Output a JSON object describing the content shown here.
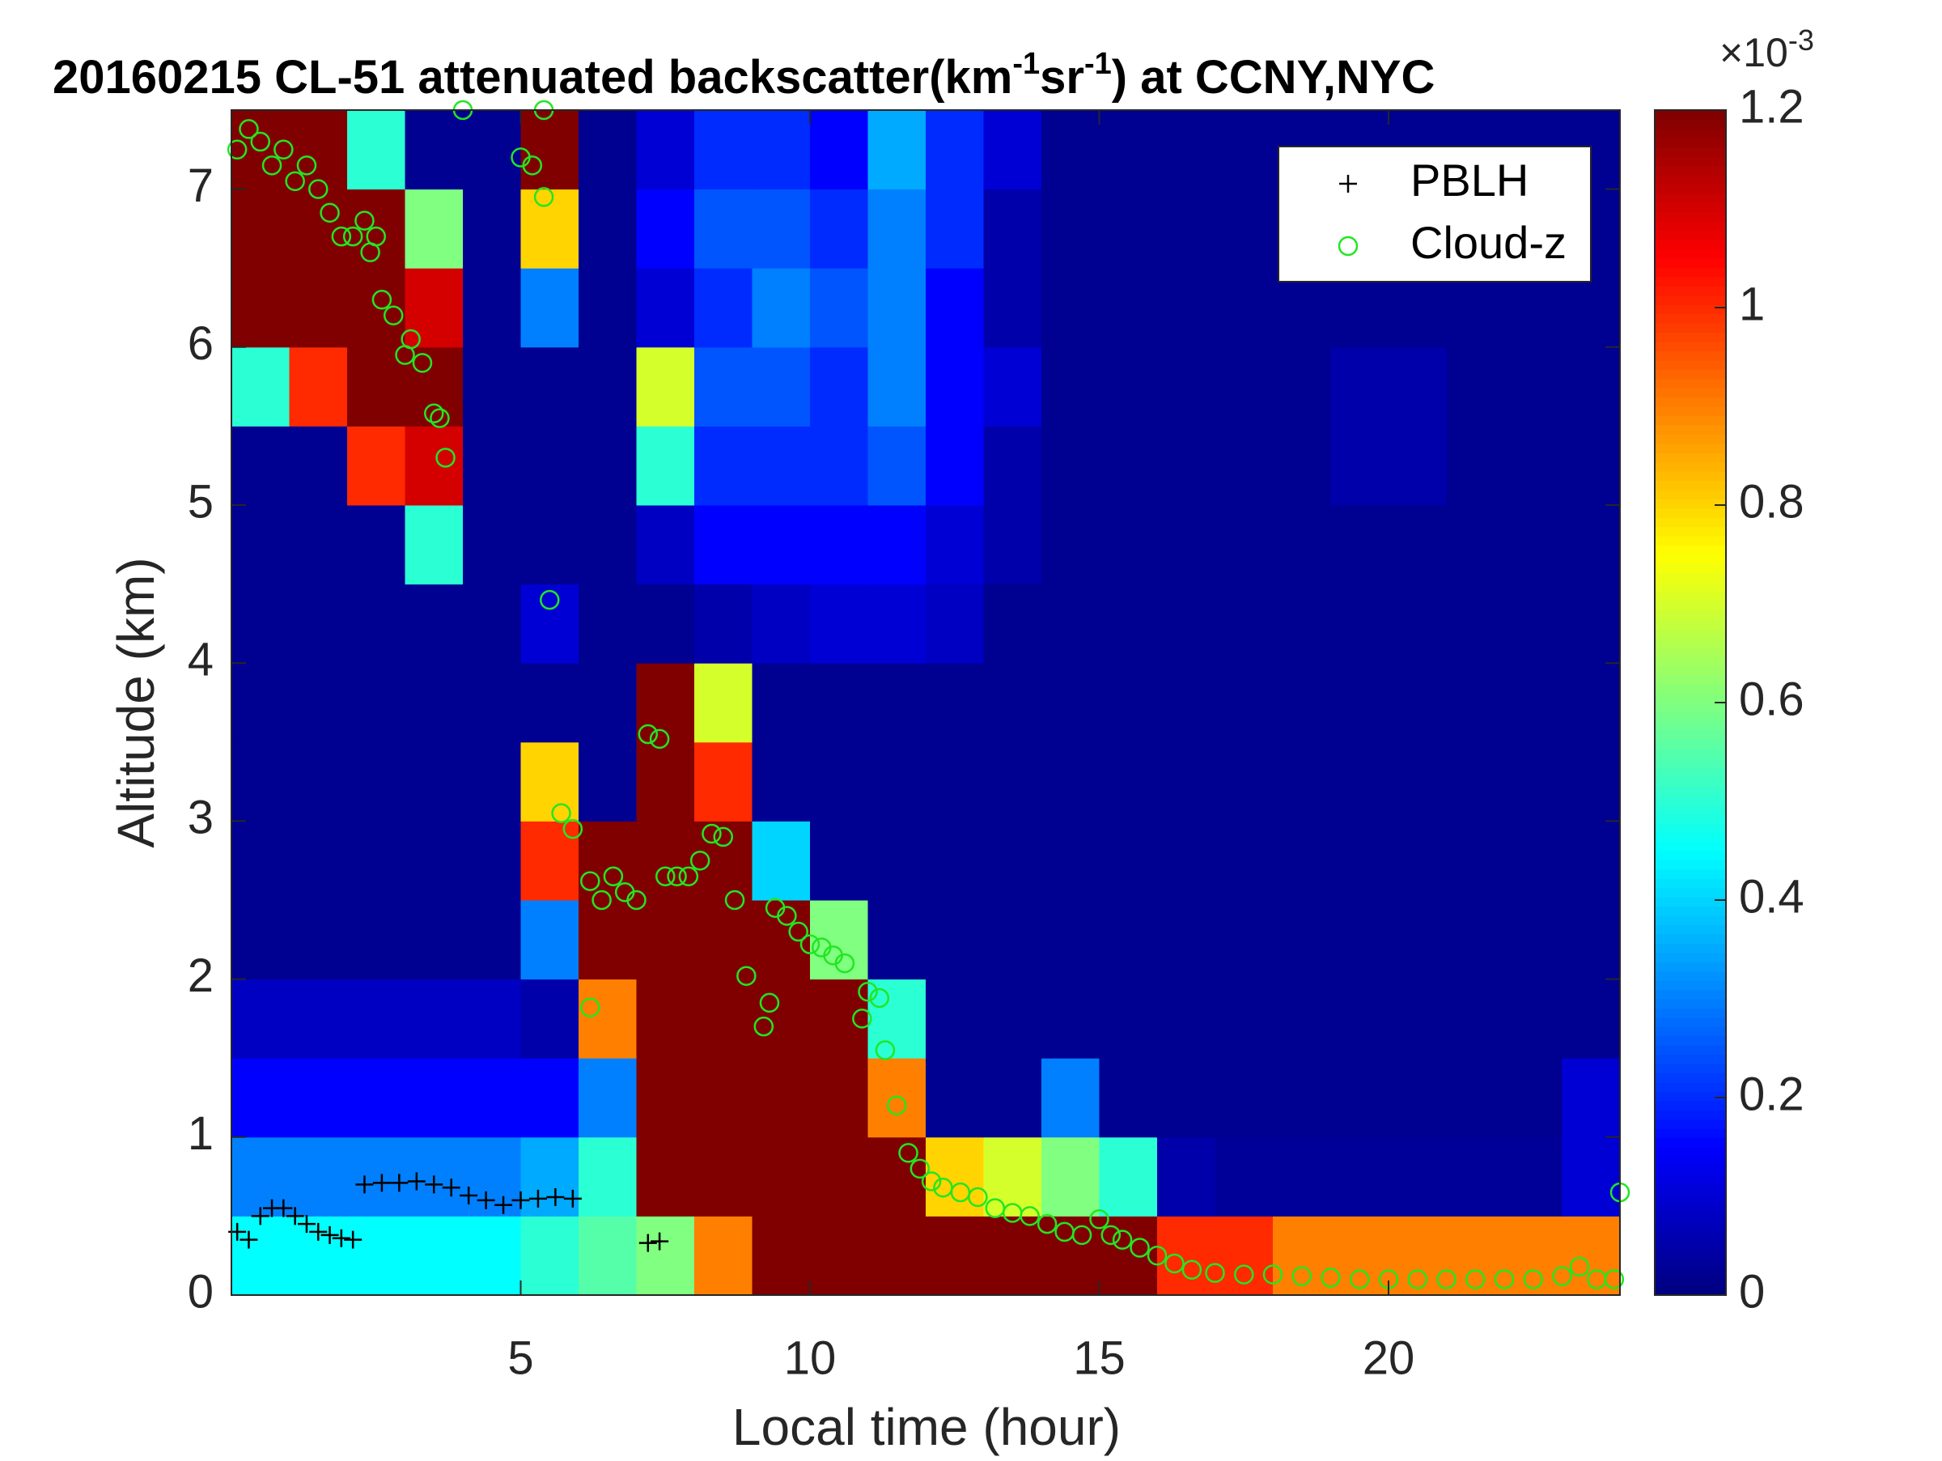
{
  "chart_data": {
    "type": "heatmap",
    "title": [
      "20160215  CL-51 attenuated backscatter(km",
      "-1",
      "sr",
      "-1",
      ") at CCNY,NYC"
    ],
    "x_label": "Local time (hour)",
    "y_label": "Altitude (km)",
    "xlim": [
      0,
      24
    ],
    "ylim": [
      0,
      7.5
    ],
    "xticks": [
      5,
      10,
      15,
      20
    ],
    "yticks": [
      0,
      1,
      2,
      3,
      4,
      5,
      6,
      7
    ],
    "colormap": "jet",
    "clim": [
      0,
      1.2
    ],
    "cticks": [
      0,
      0.2,
      0.4,
      0.6,
      0.8,
      1,
      1.2
    ],
    "colorbar_exponent": [
      "×10",
      "-3"
    ],
    "legend": "upper right",
    "xbins": [
      0,
      1,
      2,
      3,
      4,
      5,
      6,
      7,
      8,
      9,
      10,
      11,
      12,
      13,
      14,
      15,
      16,
      17,
      18,
      19,
      20,
      21,
      22,
      23,
      24
    ],
    "ybins": [
      0,
      0.5,
      1,
      1.5,
      2,
      2.5,
      3,
      3.5,
      4,
      4.5,
      5,
      5.5,
      6,
      6.5,
      7,
      7.5
    ],
    "z": [
      [
        0.45,
        0.45,
        0.45,
        0.45,
        0.45,
        0.5,
        0.55,
        0.6,
        0.9,
        1.2,
        1.2,
        1.2,
        1.2,
        1.2,
        1.2,
        1.2,
        1.0,
        1.0,
        0.9,
        0.9,
        0.9,
        0.9,
        0.9,
        0.9
      ],
      [
        0.3,
        0.3,
        0.3,
        0.3,
        0.3,
        0.35,
        0.5,
        1.2,
        1.2,
        1.2,
        1.2,
        1.2,
        0.8,
        0.7,
        0.6,
        0.5,
        0.05,
        0.03,
        0.03,
        0.03,
        0.03,
        0.03,
        0.03,
        0.1
      ],
      [
        0.15,
        0.15,
        0.15,
        0.15,
        0.15,
        0.15,
        0.3,
        1.2,
        1.2,
        1.2,
        1.2,
        0.9,
        0.02,
        0.02,
        0.3,
        0.02,
        0.02,
        0.02,
        0.02,
        0.02,
        0.02,
        0.02,
        0.02,
        0.1
      ],
      [
        0.08,
        0.08,
        0.08,
        0.08,
        0.08,
        0.05,
        0.9,
        1.2,
        1.2,
        1.2,
        1.2,
        0.5,
        0.02,
        0.02,
        0.02,
        0.02,
        0.02,
        0.02,
        0.02,
        0.02,
        0.02,
        0.02,
        0.02,
        0.02
      ],
      [
        0.02,
        0.02,
        0.02,
        0.02,
        0.02,
        0.3,
        1.2,
        1.2,
        1.2,
        1.2,
        0.6,
        0.02,
        0.02,
        0.02,
        0.02,
        0.02,
        0.02,
        0.02,
        0.02,
        0.02,
        0.02,
        0.02,
        0.02,
        0.02
      ],
      [
        0.02,
        0.02,
        0.02,
        0.02,
        0.02,
        1.0,
        1.2,
        1.2,
        1.2,
        0.4,
        0.02,
        0.02,
        0.02,
        0.02,
        0.02,
        0.02,
        0.02,
        0.02,
        0.02,
        0.02,
        0.02,
        0.02,
        0.02,
        0.02
      ],
      [
        0.02,
        0.02,
        0.02,
        0.02,
        0.02,
        0.8,
        0.02,
        1.2,
        1.0,
        0.02,
        0.02,
        0.02,
        0.02,
        0.02,
        0.02,
        0.02,
        0.02,
        0.02,
        0.02,
        0.02,
        0.02,
        0.02,
        0.02,
        0.02
      ],
      [
        0.02,
        0.02,
        0.02,
        0.02,
        0.02,
        0.02,
        0.02,
        1.2,
        0.7,
        0.02,
        0.02,
        0.02,
        0.02,
        0.02,
        0.02,
        0.02,
        0.02,
        0.02,
        0.02,
        0.02,
        0.02,
        0.02,
        0.02,
        0.02
      ],
      [
        0.02,
        0.02,
        0.02,
        0.02,
        0.02,
        0.1,
        0.02,
        0.02,
        0.05,
        0.08,
        0.1,
        0.1,
        0.08,
        0.02,
        0.02,
        0.02,
        0.02,
        0.02,
        0.02,
        0.02,
        0.02,
        0.02,
        0.02,
        0.02
      ],
      [
        0.02,
        0.02,
        0.02,
        0.5,
        0.02,
        0.02,
        0.02,
        0.08,
        0.15,
        0.15,
        0.15,
        0.15,
        0.1,
        0.05,
        0.02,
        0.02,
        0.02,
        0.02,
        0.02,
        0.02,
        0.02,
        0.02,
        0.02,
        0.02
      ],
      [
        0.02,
        0.02,
        1.0,
        1.1,
        0.02,
        0.02,
        0.02,
        0.5,
        0.2,
        0.2,
        0.2,
        0.25,
        0.15,
        0.05,
        0.02,
        0.02,
        0.02,
        0.02,
        0.02,
        0.05,
        0.05,
        0.02,
        0.02,
        0.02
      ],
      [
        0.5,
        1.0,
        1.2,
        1.2,
        0.02,
        0.02,
        0.02,
        0.7,
        0.25,
        0.25,
        0.2,
        0.3,
        0.15,
        0.1,
        0.02,
        0.02,
        0.02,
        0.02,
        0.02,
        0.05,
        0.05,
        0.02,
        0.02,
        0.02
      ],
      [
        1.2,
        1.2,
        1.2,
        1.1,
        0.02,
        0.3,
        0.02,
        0.1,
        0.2,
        0.3,
        0.25,
        0.3,
        0.15,
        0.05,
        0.02,
        0.02,
        0.02,
        0.02,
        0.02,
        0.02,
        0.02,
        0.02,
        0.02,
        0.02
      ],
      [
        1.2,
        1.2,
        1.2,
        0.6,
        0.02,
        0.8,
        0.02,
        0.15,
        0.25,
        0.25,
        0.2,
        0.3,
        0.2,
        0.05,
        0.02,
        0.02,
        0.02,
        0.02,
        0.02,
        0.02,
        0.02,
        0.02,
        0.02,
        0.02
      ],
      [
        1.2,
        1.2,
        0.5,
        0.02,
        0.02,
        1.2,
        0.02,
        0.1,
        0.2,
        0.2,
        0.15,
        0.35,
        0.2,
        0.1,
        0.02,
        0.02,
        0.02,
        0.02,
        0.02,
        0.02,
        0.02,
        0.02,
        0.02,
        0.02
      ]
    ],
    "series": [
      {
        "name": "PBLH",
        "marker": "+",
        "color": "#000000",
        "x": [
          0.1,
          0.3,
          0.5,
          0.7,
          0.9,
          1.1,
          1.3,
          1.5,
          1.7,
          1.9,
          2.1,
          2.3,
          2.6,
          2.9,
          3.2,
          3.5,
          3.8,
          4.1,
          4.4,
          4.7,
          5.0,
          5.3,
          5.6,
          5.9,
          7.2,
          7.4
        ],
        "values": [
          0.4,
          0.35,
          0.5,
          0.55,
          0.55,
          0.5,
          0.45,
          0.4,
          0.38,
          0.36,
          0.35,
          0.7,
          0.71,
          0.71,
          0.72,
          0.7,
          0.68,
          0.63,
          0.6,
          0.57,
          0.6,
          0.61,
          0.62,
          0.61,
          0.33,
          0.34
        ]
      },
      {
        "name": "Cloud-z",
        "marker": "o",
        "color": "#22e622",
        "x": [
          0.1,
          0.3,
          0.5,
          0.7,
          0.9,
          1.1,
          1.3,
          1.5,
          1.7,
          1.9,
          2.1,
          2.3,
          2.4,
          2.5,
          2.6,
          2.8,
          3.0,
          3.1,
          3.3,
          3.5,
          3.6,
          3.7,
          4.0,
          5.0,
          5.2,
          5.4,
          5.4,
          5.5,
          5.7,
          5.9,
          6.2,
          6.2,
          6.4,
          6.6,
          6.8,
          7.0,
          7.2,
          7.4,
          7.5,
          7.7,
          7.9,
          8.1,
          8.3,
          8.5,
          8.7,
          8.9,
          9.2,
          9.3,
          9.4,
          9.6,
          9.8,
          10.0,
          10.2,
          10.4,
          10.6,
          10.9,
          11.0,
          11.2,
          11.3,
          11.5,
          11.7,
          11.9,
          12.1,
          12.3,
          12.6,
          12.9,
          13.2,
          13.5,
          13.8,
          14.1,
          14.4,
          14.7,
          15.0,
          15.2,
          15.4,
          15.7,
          16.0,
          16.3,
          16.6,
          17.0,
          17.5,
          18.0,
          18.5,
          19.0,
          19.5,
          20.0,
          20.5,
          21.0,
          21.5,
          22.0,
          22.5,
          23.0,
          23.3,
          23.6,
          23.9,
          24.0
        ],
        "values": [
          7.25,
          7.38,
          7.3,
          7.15,
          7.25,
          7.05,
          7.15,
          7.0,
          6.85,
          6.7,
          6.7,
          6.8,
          6.6,
          6.7,
          6.3,
          6.2,
          5.95,
          6.05,
          5.9,
          5.58,
          5.55,
          5.3,
          7.5,
          7.2,
          7.15,
          6.95,
          7.5,
          4.4,
          3.05,
          2.95,
          2.62,
          1.82,
          2.5,
          2.65,
          2.55,
          2.5,
          3.55,
          3.52,
          2.65,
          2.65,
          2.65,
          2.75,
          2.92,
          2.9,
          2.5,
          2.02,
          1.7,
          1.85,
          2.45,
          2.4,
          2.3,
          2.22,
          2.2,
          2.15,
          2.1,
          1.75,
          1.92,
          1.88,
          1.55,
          1.2,
          0.9,
          0.8,
          0.72,
          0.68,
          0.65,
          0.62,
          0.55,
          0.52,
          0.5,
          0.45,
          0.4,
          0.38,
          0.48,
          0.38,
          0.35,
          0.3,
          0.25,
          0.2,
          0.16,
          0.14,
          0.13,
          0.13,
          0.12,
          0.11,
          0.1,
          0.1,
          0.1,
          0.1,
          0.1,
          0.1,
          0.1,
          0.12,
          0.18,
          0.1,
          0.1,
          0.65
        ]
      }
    ]
  }
}
